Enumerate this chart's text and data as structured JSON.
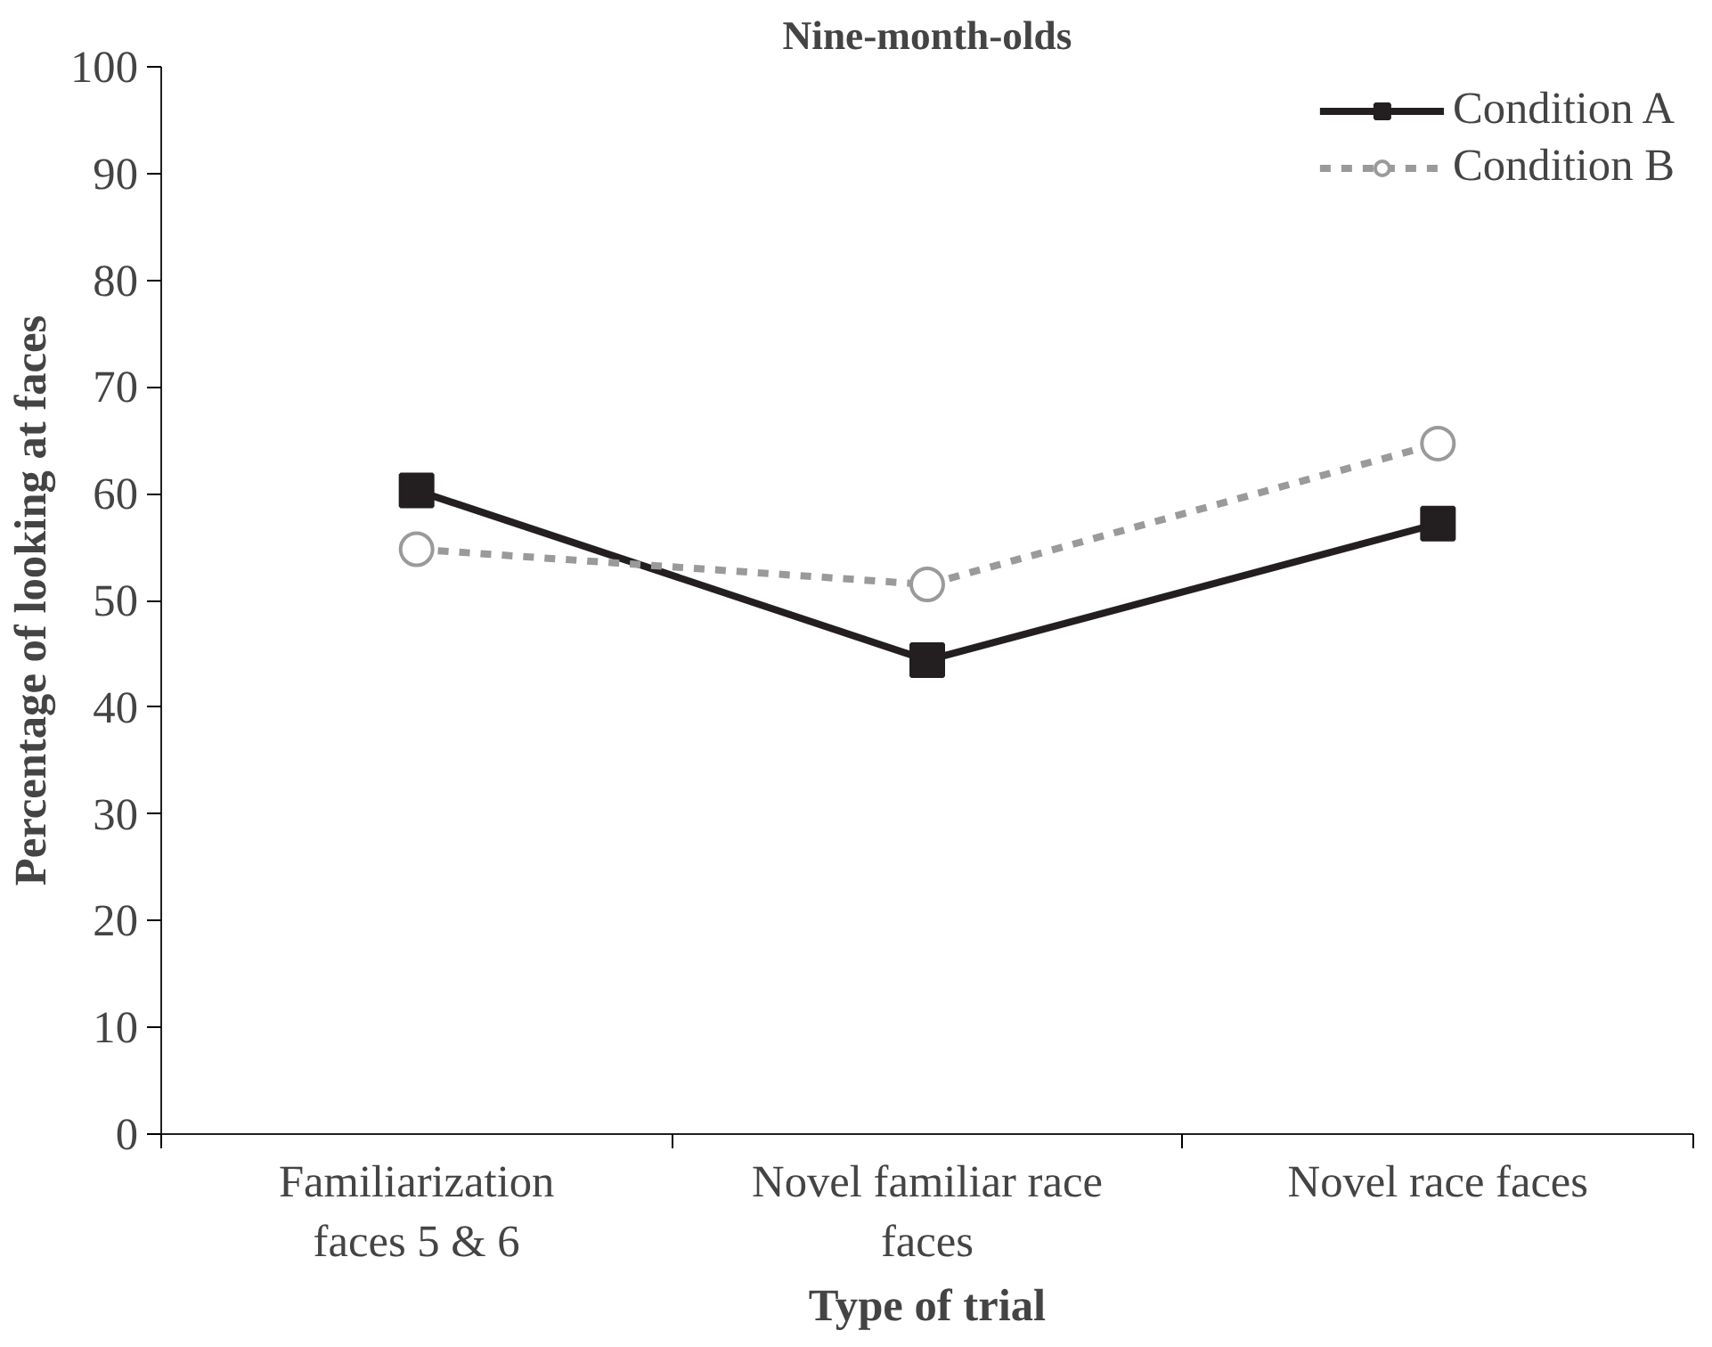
{
  "chart_data": {
    "type": "line",
    "title": "Nine-month-olds",
    "xlabel": "Type of trial",
    "ylabel": "Percentage of looking at faces",
    "categories": [
      "Familiarization\nfaces 5 & 6",
      "Novel familiar race\nfaces",
      "Novel race faces"
    ],
    "series": [
      {
        "name": "Condition A",
        "color": "#231f20",
        "values": [
          60.3,
          44.4,
          57.2
        ],
        "marker": "square",
        "line_style": "solid"
      },
      {
        "name": "Condition B",
        "color": "#9a9a9a",
        "values": [
          54.8,
          51.5,
          64.7
        ],
        "marker": "circle",
        "line_style": "dashed"
      }
    ],
    "ylim": [
      0,
      100
    ],
    "yticks": [
      0,
      10,
      20,
      30,
      40,
      50,
      60,
      70,
      80,
      90,
      100
    ],
    "grid": false,
    "legend": "top right"
  }
}
